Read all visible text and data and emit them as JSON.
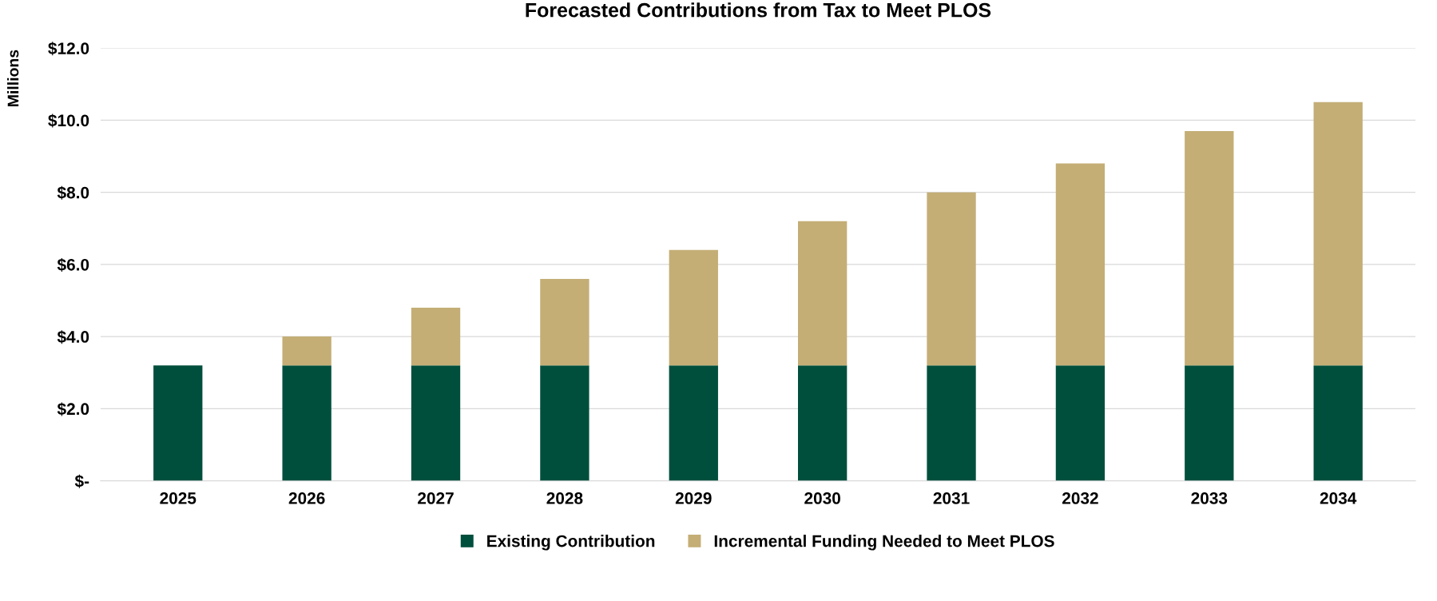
{
  "chart_data": {
    "type": "bar",
    "title": "Forecasted Contributions from Tax to Meet PLOS",
    "ylabel": "Millions",
    "categories": [
      "2025",
      "2026",
      "2027",
      "2028",
      "2029",
      "2030",
      "2031",
      "2032",
      "2033",
      "2034"
    ],
    "stacked": true,
    "series": [
      {
        "name": "Existing Contribution",
        "color": "#004f3d",
        "values": [
          3.2,
          3.2,
          3.2,
          3.2,
          3.2,
          3.2,
          3.2,
          3.2,
          3.2,
          3.2
        ]
      },
      {
        "name": "Incremental Funding Needed to Meet PLOS",
        "color": "#c4ae76",
        "values": [
          0,
          0.8,
          1.6,
          2.4,
          3.2,
          4.0,
          4.8,
          5.6,
          6.5,
          7.3
        ]
      }
    ],
    "ylim": [
      0,
      12
    ],
    "yticks": [
      {
        "value": 0,
        "label": "$-"
      },
      {
        "value": 2,
        "label": "$2.0"
      },
      {
        "value": 4,
        "label": "$4.0"
      },
      {
        "value": 6,
        "label": "$6.0"
      },
      {
        "value": 8,
        "label": "$8.0"
      },
      {
        "value": 10,
        "label": "$10.0"
      },
      {
        "value": 12,
        "label": "$12.0"
      }
    ],
    "grid": "y",
    "legend": "bottom"
  }
}
